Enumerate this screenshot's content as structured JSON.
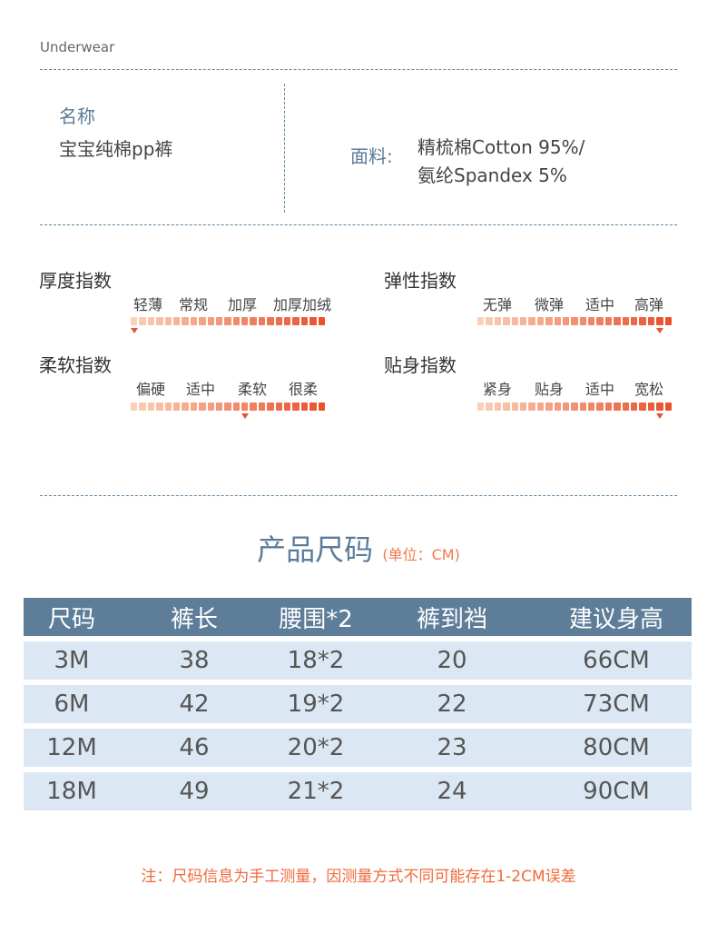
{
  "brand": "Underwear",
  "product": {
    "name_label": "名称",
    "name_value": "宝宝纯棉pp裤",
    "material_label": "面料:",
    "material_line1": "精梳棉Cotton 95%/",
    "material_line2": "氨纶Spandex 5%"
  },
  "indices": [
    {
      "title": "厚度指数",
      "labels": [
        "轻薄",
        "常规",
        "加厚",
        "加厚加绒"
      ],
      "level": 0.0
    },
    {
      "title": "弹性指数",
      "labels": [
        "无弹",
        "微弹",
        "适中",
        "高弹"
      ],
      "level": 0.97
    },
    {
      "title": "柔软指数",
      "labels": [
        "偏硬",
        "适中",
        "柔软",
        "很柔"
      ],
      "level": 0.6
    },
    {
      "title": "贴身指数",
      "labels": [
        "紧身",
        "贴身",
        "适中",
        "宽松"
      ],
      "level": 0.97
    }
  ],
  "size_chart": {
    "title": "产品尺码",
    "unit": "(单位：CM)",
    "headers": [
      "尺码",
      "裤长",
      "腰围*2",
      "裤到裆",
      "建议身高"
    ],
    "rows": [
      [
        "3M",
        "38",
        "18*2",
        "20",
        "66CM"
      ],
      [
        "6M",
        "42",
        "19*2",
        "22",
        "73CM"
      ],
      [
        "12M",
        "46",
        "20*2",
        "23",
        "80CM"
      ],
      [
        "18M",
        "49",
        "21*2",
        "24",
        "90CM"
      ]
    ]
  },
  "note": "注：尺码信息为手工测量，因测量方式不同可能存在1-2CM误差",
  "colors": {
    "accent": "#5d7d99",
    "bar_light": "#fbd0b6",
    "bar_dark": "#e8522e",
    "note": "#f06a3a"
  }
}
